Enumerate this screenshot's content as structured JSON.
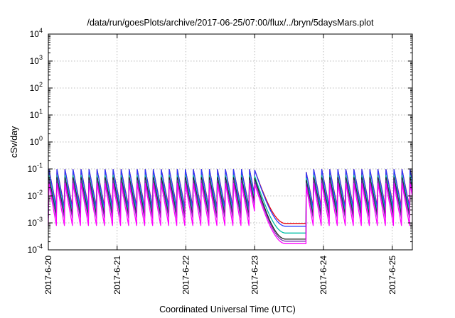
{
  "chart_data": {
    "type": "line",
    "title": "/data/run/goesPlots/archive/2017-06-25/07:00/flux/../bryn/5daysMars.plot",
    "xlabel": "Coordinated Universal Time (UTC)",
    "ylabel": "cSv/day",
    "yscale": "log",
    "ylim": [
      0.0001,
      10000
    ],
    "xlim": [
      "2017-06-20T00:00",
      "2017-06-25T07:00"
    ],
    "y_ticks": [
      {
        "base": "10",
        "exp": "-4"
      },
      {
        "base": "10",
        "exp": "-3"
      },
      {
        "base": "10",
        "exp": "-2"
      },
      {
        "base": "10",
        "exp": "-1"
      },
      {
        "base": "10",
        "exp": "0"
      },
      {
        "base": "10",
        "exp": "1"
      },
      {
        "base": "10",
        "exp": "2"
      },
      {
        "base": "10",
        "exp": "3"
      },
      {
        "base": "10",
        "exp": "4"
      }
    ],
    "x_ticks": [
      "2017-6-20",
      "2017-6-21",
      "2017-6-22",
      "2017-6-23",
      "2017-6-24",
      "2017-6-25"
    ],
    "grid": true,
    "legend": "none",
    "period_hours": 2.8,
    "quiet_interval": [
      "2017-06-23T00:00",
      "2017-06-23T18:00"
    ],
    "series": [
      {
        "color": "#e8000b",
        "peak": 0.1,
        "trough": 0.004,
        "quiet_level": 0.00095
      },
      {
        "color": "#2a3cff",
        "peak": 0.1,
        "trough": 0.0035,
        "quiet_level": 0.00075
      },
      {
        "color": "#00bfa5",
        "peak": 0.06,
        "trough": 0.0025,
        "quiet_level": 0.00042
      },
      {
        "color": "#202020",
        "peak": 0.05,
        "trough": 0.0018,
        "quiet_level": 0.00025
      },
      {
        "color": "#7a2fb0",
        "peak": 0.04,
        "trough": 0.0015,
        "quiet_level": 0.00021
      },
      {
        "color": "#ff00ff",
        "peak": 0.03,
        "trough": 0.0008,
        "quiet_level": 0.00017
      }
    ]
  }
}
